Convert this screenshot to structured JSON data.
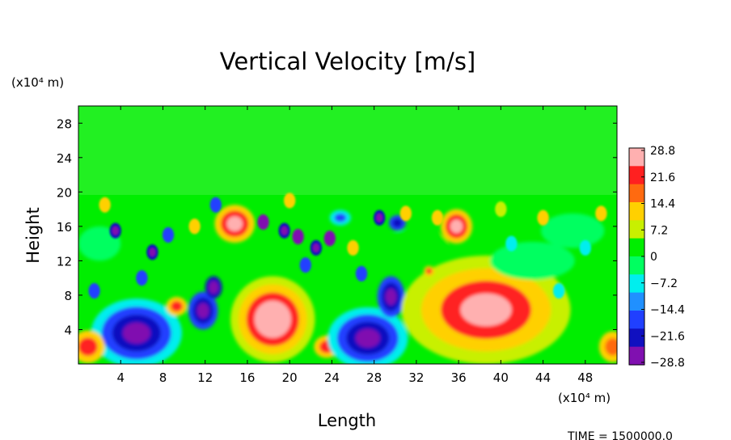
{
  "chart_data": {
    "type": "heatmap",
    "title": "Vertical Velocity [m/s]",
    "xlabel": "Length",
    "ylabel": "Height",
    "x_unit": "(x10⁴ m)",
    "y_unit": "(x10⁴ m)",
    "xlim": [
      0,
      51
    ],
    "ylim": [
      0,
      30
    ],
    "x_ticks": [
      "4",
      "8",
      "12",
      "16",
      "20",
      "24",
      "28",
      "32",
      "36",
      "40",
      "44",
      "48"
    ],
    "y_ticks": [
      "4",
      "8",
      "12",
      "16",
      "20",
      "24",
      "28"
    ],
    "colorbar": {
      "min": -28.8,
      "max": 28.8,
      "tick_labels": [
        "28.8",
        "21.6",
        "14.4",
        "7.2",
        "0",
        "−7.2",
        "−14.4",
        "−21.6",
        "−28.8"
      ],
      "colors": [
        "#ffb0b0",
        "#ff2020",
        "#ff6a10",
        "#ffd000",
        "#c8f000",
        "#00ee00",
        "#00ff60",
        "#00eeee",
        "#2090ff",
        "#2040ff",
        "#1010c0",
        "#8010b0"
      ]
    },
    "features": [
      {
        "x": 5.5,
        "y": 3.5,
        "value": -28.8
      },
      {
        "x": 9.5,
        "y": 6.5,
        "value": 18
      },
      {
        "x": 12.0,
        "y": 6.5,
        "value": -26
      },
      {
        "x": 14.8,
        "y": 16.2,
        "value": 28.8
      },
      {
        "x": 18.3,
        "y": 4.8,
        "value": 28.8
      },
      {
        "x": 23.5,
        "y": 2.0,
        "value": 20
      },
      {
        "x": 27.5,
        "y": 2.8,
        "value": -28.8
      },
      {
        "x": 29.5,
        "y": 7.5,
        "value": -26
      },
      {
        "x": 35.7,
        "y": 16.0,
        "value": 26
      },
      {
        "x": 38.5,
        "y": 6.5,
        "value": 26
      },
      {
        "x": 1.0,
        "y": 2.0,
        "value": 16
      },
      {
        "x": 50.5,
        "y": 2.0,
        "value": 16
      }
    ]
  },
  "footer": {
    "time_text": "TIME = 1500000.0"
  }
}
